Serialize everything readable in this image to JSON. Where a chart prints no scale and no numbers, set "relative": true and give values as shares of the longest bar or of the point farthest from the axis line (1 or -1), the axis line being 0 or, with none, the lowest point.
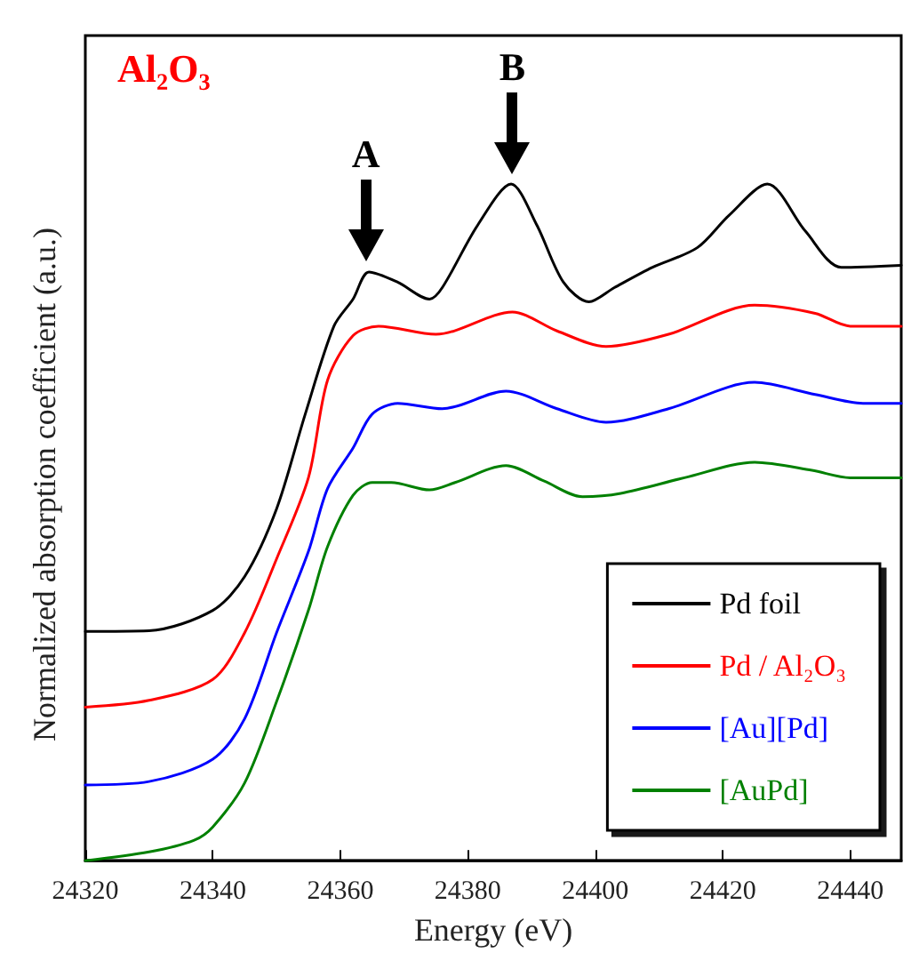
{
  "chart_data": {
    "type": "line",
    "relative": true,
    "xlabel": "Energy (eV)",
    "ylabel": "Normalized absorption coefficient (a.u.)",
    "xlim": [
      24320,
      24448
    ],
    "xticks": [
      24320,
      24340,
      24360,
      24380,
      24400,
      24420,
      24440
    ],
    "legend": "bottom right",
    "grid": false,
    "marker": "none",
    "line_style": "solid",
    "annotations": [
      "Al₂O₃",
      {
        "text": "A",
        "x": 24364,
        "y": 0.87
      },
      {
        "text": "B",
        "x": 24387,
        "y": 1.0
      }
    ],
    "series": [
      {
        "name": "Pd foil",
        "color": "#000000",
        "x": [
          24320,
          24330,
          24340,
          24345,
          24350,
          24354.5,
          24359,
          24362,
          24364.5,
          24369,
          24374,
          24376,
          24381.6,
          24386.8,
          24390.8,
          24395,
          24399,
          24403,
          24409,
          24416,
          24421,
          24427,
          24433,
          24438.6,
          24448
        ],
        "values": [
          0.339,
          0.34,
          0.37,
          0.42,
          0.52,
          0.66,
          0.79,
          0.83,
          0.87,
          0.855,
          0.83,
          0.847,
          0.94,
          1.0,
          0.94,
          0.855,
          0.826,
          0.847,
          0.877,
          0.906,
          0.954,
          1.0,
          0.93,
          0.877,
          0.88
        ]
      },
      {
        "name": "Pd / Al₂O₃",
        "color": "#ff0000",
        "x": [
          24320,
          24330,
          24340,
          24345,
          24350,
          24355,
          24358,
          24362,
          24366,
          24375,
          24387,
          24394,
          24401.7,
          24411.5,
          24425,
          24434.5,
          24440,
          24448
        ],
        "values": [
          0.227,
          0.237,
          0.268,
          0.337,
          0.446,
          0.566,
          0.71,
          0.776,
          0.79,
          0.778,
          0.811,
          0.783,
          0.76,
          0.778,
          0.821,
          0.809,
          0.79,
          0.79
        ]
      },
      {
        "name": "[Au][Pd]",
        "color": "#0000ff",
        "x": [
          24320,
          24330,
          24340,
          24345,
          24350,
          24355,
          24358,
          24362,
          24365,
          24369,
          24376,
          24386,
          24394,
          24401.7,
          24411.5,
          24425,
          24434.5,
          24442,
          24448
        ],
        "values": [
          0.112,
          0.117,
          0.15,
          0.21,
          0.337,
          0.457,
          0.55,
          0.61,
          0.66,
          0.676,
          0.668,
          0.694,
          0.668,
          0.648,
          0.668,
          0.707,
          0.689,
          0.676,
          0.676
        ]
      },
      {
        "name": "[AuPd]",
        "color": "#008000",
        "x": [
          24320,
          24330,
          24337,
          24340,
          24345,
          24350,
          24355,
          24358,
          24362,
          24365,
          24368,
          24374,
          24378,
          24386,
          24392,
          24398,
          24404,
          24414,
          24425,
          24434,
          24440,
          24448
        ],
        "values": [
          0.0,
          0.013,
          0.03,
          0.05,
          0.115,
          0.235,
          0.37,
          0.464,
          0.54,
          0.559,
          0.559,
          0.548,
          0.559,
          0.584,
          0.561,
          0.538,
          0.543,
          0.566,
          0.589,
          0.577,
          0.566,
          0.566
        ]
      }
    ]
  }
}
